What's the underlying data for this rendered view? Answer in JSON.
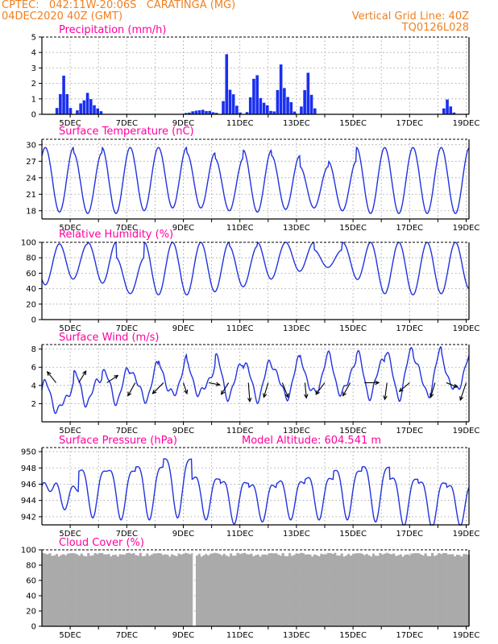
{
  "header": {
    "line1_left": "CPTEC:   042:11W-20:06S   CARATINGA (MG)",
    "line2_left": "04DEC2020 40Z (GMT)",
    "line2_right": "Vertical Grid Line: 40Z",
    "line3_right": "TQ0126L028"
  },
  "colors": {
    "header": "#f08020",
    "panel_title": "#ff00a0",
    "series": "#2233dd",
    "bars": "#1a2ff0",
    "cloud": "#aaaaaa",
    "wind_arrow": "#000000"
  },
  "x_axis": {
    "labels": [
      "5DEC",
      "7DEC",
      "9DEC",
      "11DEC",
      "13DEC",
      "15DEC",
      "17DEC",
      "19DEC"
    ],
    "start": "4DEC2020 40Z",
    "end": "19DEC2020",
    "vertical_grid": "daily"
  },
  "chart_data": [
    {
      "type": "bar",
      "title": "Precipitation (mm/h)",
      "ylim": [
        0,
        5
      ],
      "yticks": [
        "0",
        "1",
        "2",
        "3",
        "4",
        "5"
      ],
      "x_unit": "days since 4DEC 40Z",
      "events": [
        {
          "x": 0.72,
          "peak": 2.5,
          "width": 0.18
        },
        {
          "x": 1.55,
          "peak": 1.4,
          "width": 0.28
        },
        {
          "x": 1.9,
          "peak": 0.4,
          "width": 0.2
        },
        {
          "x": 5.6,
          "peak": 0.3,
          "width": 0.5
        },
        {
          "x": 6.5,
          "peak": 4.0,
          "width": 0.12
        },
        {
          "x": 6.65,
          "peak": 1.5,
          "width": 0.2
        },
        {
          "x": 7.5,
          "peak": 3.0,
          "width": 0.18
        },
        {
          "x": 7.7,
          "peak": 1.0,
          "width": 0.3
        },
        {
          "x": 8.4,
          "peak": 3.6,
          "width": 0.14
        },
        {
          "x": 8.6,
          "peak": 1.5,
          "width": 0.2
        },
        {
          "x": 9.35,
          "peak": 2.7,
          "width": 0.18
        },
        {
          "x": 14.3,
          "peak": 1.0,
          "width": 0.15
        }
      ]
    },
    {
      "type": "line",
      "title": "Surface Temperature (nC)",
      "ylim": [
        16.5,
        31
      ],
      "yticks": [
        "18",
        "21",
        "24",
        "27",
        "30"
      ],
      "daily_max": [
        29.5,
        28.5,
        29.5,
        29.5,
        29.5,
        28.5,
        27.5,
        29.0,
        28.0,
        26.0,
        27.0,
        29.5,
        29.5,
        29.5,
        29.5,
        28.5
      ],
      "daily_min": [
        18.0,
        17.5,
        17.5,
        17.5,
        18.5,
        18.5,
        18.5,
        17.5,
        18.0,
        18.5,
        18.5,
        17.5,
        17.5,
        17.5,
        17.5,
        17.5
      ]
    },
    {
      "type": "line",
      "title": "Relative Humidity (%)",
      "ylim": [
        0,
        100
      ],
      "yticks": [
        "0",
        "20",
        "40",
        "60",
        "80",
        "100"
      ],
      "daily_max": [
        98,
        100,
        80,
        100,
        100,
        100,
        95,
        100,
        100,
        90,
        100,
        100,
        100,
        100,
        100,
        100
      ],
      "daily_min": [
        45,
        60,
        35,
        32,
        32,
        32,
        40,
        45,
        60,
        65,
        70,
        35,
        32,
        32,
        35,
        45
      ]
    },
    {
      "type": "line",
      "title": "Surface Wind (m/s)",
      "ylim": [
        0,
        8.5
      ],
      "yticks": [
        "2",
        "4",
        "6",
        "8"
      ],
      "daily_max": [
        4.0,
        5.2,
        5.8,
        6.0,
        6.6,
        6.0,
        7.0,
        6.6,
        6.6,
        7.0,
        7.0,
        7.4,
        8.0,
        7.6,
        7.0,
        6.5
      ],
      "daily_min": [
        0.5,
        2.0,
        2.5,
        2.5,
        2.5,
        3.0,
        3.0,
        2.8,
        2.8,
        2.8,
        3.0,
        3.0,
        3.0,
        3.0,
        3.0,
        3.5
      ],
      "wind_vectors": [
        {
          "x": 0.5,
          "u": -1.2,
          "v": 1.5
        },
        {
          "x": 1.3,
          "u": 1.0,
          "v": 1.6
        },
        {
          "x": 2.3,
          "u": 1.5,
          "v": 1.0
        },
        {
          "x": 3.3,
          "u": -1.0,
          "v": -1.8
        },
        {
          "x": 4.3,
          "u": -1.5,
          "v": -1.5
        },
        {
          "x": 5.0,
          "u": 0.5,
          "v": -1.5
        },
        {
          "x": 5.9,
          "u": 1.5,
          "v": -0.3
        },
        {
          "x": 6.6,
          "u": -1.0,
          "v": -1.6
        },
        {
          "x": 7.3,
          "u": 0.2,
          "v": -2.6
        },
        {
          "x": 8.0,
          "u": -0.6,
          "v": -2.0
        },
        {
          "x": 8.5,
          "u": 0.8,
          "v": -2.0
        },
        {
          "x": 9.3,
          "u": 0.2,
          "v": -2.1
        },
        {
          "x": 10.0,
          "u": -1.2,
          "v": -1.6
        },
        {
          "x": 10.9,
          "u": -1.0,
          "v": -1.8
        },
        {
          "x": 11.4,
          "u": 2.0,
          "v": 0.0
        },
        {
          "x": 12.2,
          "u": -0.3,
          "v": -2.3
        },
        {
          "x": 13.0,
          "u": -1.4,
          "v": -1.2
        },
        {
          "x": 13.9,
          "u": -0.6,
          "v": -2.0
        },
        {
          "x": 14.3,
          "u": 1.5,
          "v": -0.6
        },
        {
          "x": 15.0,
          "u": -0.8,
          "v": -2.4
        }
      ]
    },
    {
      "type": "line",
      "title": "Surface Pressure (hPa)",
      "subtitle": "Model Altitude: 604.541 m",
      "ylim": [
        941,
        950.5
      ],
      "yticks": [
        "942",
        "944",
        "946",
        "948",
        "950"
      ],
      "daily_max": [
        946.0,
        948.5,
        948.5,
        949.0,
        950.0,
        947.5,
        947.0,
        946.5,
        947.0,
        947.5,
        948.5,
        949.0,
        947.5,
        947.0,
        946.5,
        945.5
      ],
      "daily_min": [
        944.5,
        943.0,
        942.5,
        942.5,
        942.5,
        943.0,
        942.0,
        942.0,
        942.5,
        942.5,
        942.5,
        942.5,
        942.0,
        941.5,
        941.5,
        942.0
      ]
    },
    {
      "type": "area",
      "title": "Cloud Cover (%)",
      "ylim": [
        0,
        100
      ],
      "yticks": [
        "0",
        "20",
        "40",
        "60",
        "80",
        "100"
      ],
      "typical_value": 96,
      "gap_x": 5.35
    }
  ]
}
